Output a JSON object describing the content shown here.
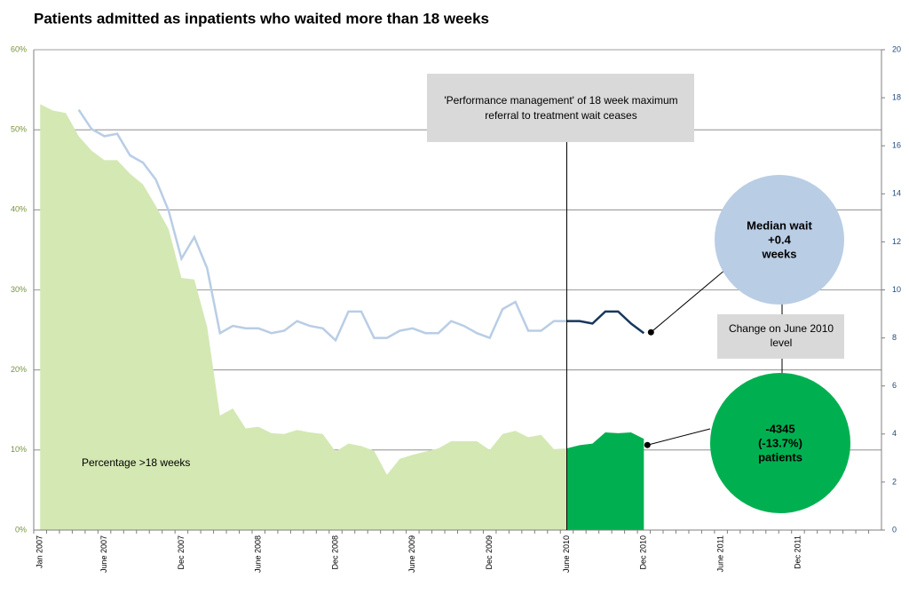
{
  "chart_data": {
    "type": "combo",
    "title": "Patients admitted as inpatients who waited more than 18 weeks",
    "categories": [
      "Jan 2007",
      null,
      null,
      null,
      null,
      "June 2007",
      null,
      null,
      null,
      null,
      null,
      "Dec 2007",
      null,
      null,
      null,
      null,
      null,
      "June 2008",
      null,
      null,
      null,
      null,
      null,
      "Dec 2008",
      null,
      null,
      null,
      null,
      null,
      "June 2009",
      null,
      null,
      null,
      null,
      null,
      "Dec 2009",
      null,
      null,
      null,
      null,
      null,
      "June 2010",
      null,
      null,
      null,
      null,
      null,
      "Dec 2010",
      null,
      null,
      null,
      null,
      null,
      "June 2011",
      null,
      null,
      null,
      null,
      null,
      "Dec 2011",
      null,
      null,
      null,
      null,
      null,
      null
    ],
    "split_at": "June 2010",
    "series": [
      {
        "name": "Percentage >18 weeks",
        "type": "area",
        "color": "#d4e8b4",
        "highlight_color": "#00b050",
        "values": [
          53.2,
          52.4,
          52.1,
          49.2,
          47.4,
          46.2,
          46.2,
          44.5,
          43.2,
          40.5,
          37.6,
          31.5,
          31.3,
          25.4,
          14.3,
          15.2,
          12.7,
          12.9,
          12.1,
          12.0,
          12.5,
          12.2,
          12.0,
          9.8,
          10.8,
          10.5,
          9.9,
          6.9,
          8.9,
          9.4,
          9.8,
          10.2,
          11.1,
          11.1,
          11.1,
          10.0,
          12.0,
          12.4,
          11.6,
          11.9,
          10.1,
          10.2,
          10.6,
          10.8,
          12.2,
          12.1,
          12.2,
          11.4,
          null,
          null,
          null,
          null,
          null,
          null,
          null,
          null,
          null,
          null,
          null,
          null,
          null,
          null,
          null,
          null,
          null,
          null
        ]
      },
      {
        "type": "line",
        "axis": "y2",
        "color": "#b9cde5",
        "highlight_color": "#17375e",
        "values": [
          null,
          null,
          null,
          17.5,
          16.7,
          16.4,
          16.5,
          15.6,
          15.3,
          14.6,
          13.3,
          11.3,
          12.2,
          10.9,
          8.2,
          8.5,
          8.4,
          8.4,
          8.2,
          8.3,
          8.7,
          8.5,
          8.4,
          7.9,
          9.1,
          9.1,
          8.0,
          8.0,
          8.3,
          8.4,
          8.2,
          8.2,
          8.7,
          8.5,
          8.2,
          8.0,
          9.2,
          9.5,
          8.3,
          8.3,
          8.7,
          8.7,
          8.7,
          8.6,
          9.1,
          9.1,
          8.6,
          8.2,
          null,
          null,
          null,
          null,
          null,
          null,
          null,
          null,
          null,
          null,
          null,
          null,
          null,
          null,
          null,
          null,
          null,
          null
        ]
      }
    ],
    "ylim": [
      0,
      60
    ],
    "yticks": [
      {
        "value": 0,
        "label": "0%"
      },
      {
        "value": 10,
        "label": "10%"
      },
      {
        "value": 20,
        "label": "20%"
      },
      {
        "value": 30,
        "label": "30%"
      },
      {
        "value": 40,
        "label": "40%"
      },
      {
        "value": 50,
        "label": "50%"
      },
      {
        "value": 60,
        "label": "60%"
      }
    ],
    "y2lim": [
      0,
      20
    ],
    "y2ticks": [
      0,
      2,
      4,
      6,
      8,
      10,
      12,
      14,
      16,
      18,
      20
    ],
    "grid": true,
    "annotations": {
      "policy": [
        "'Performance management' of 18 week maximum",
        "referral to treatment wait ceases"
      ],
      "median": [
        "Median wait",
        "+0.4",
        "weeks"
      ],
      "change": [
        "Change on June 2010",
        "level"
      ],
      "patients": [
        "-4345",
        "(-13.7%)",
        "patients"
      ]
    }
  }
}
